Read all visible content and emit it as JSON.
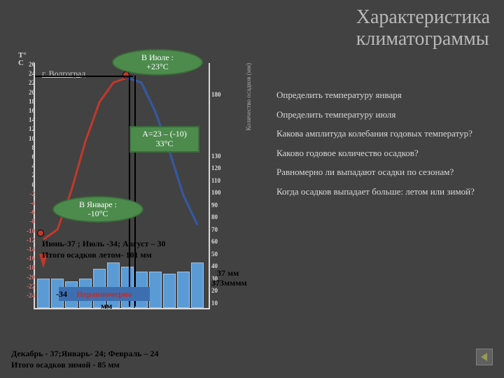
{
  "title_line1": "Характеристика",
  "title_line2": "климатограммы",
  "city_label": "г. Волгоград",
  "july_oval_l1": "В Июле :",
  "july_oval_l2": "+23°C",
  "january_oval_l1": "В Январе :",
  "january_oval_l2": "-10°C",
  "amp_l1": "А=23 – (-10)",
  "amp_l2": "33°C",
  "q1": "Определить температуру января",
  "q2": "Определить температуру июля",
  "q3": "Какова амплитуда колебания годовых температур?",
  "q4": "Каково годовое количество осадков?",
  "q5": "Равномерно ли выпадают осадки по сезонам?",
  "q6": "Когда осадков выпадает больше: летом или зимой?",
  "summer_l1": "Июнь-37 ; Июль -34; Август – 30",
  "summer_l2": "Итого осадков летом- 101 мм",
  "winter_l1": "Декабрь - 37;Январь-  24; Февраль –  24",
  "winter_l2": "Итого осадков зимой -  85 мм",
  "irregular_label": "Неравномерно",
  "irregular_left": "-34",
  "irregular_suffix": "мм",
  "mm37": "37 мм",
  "mm_blob": "373мммм",
  "mm24": "24 мм",
  "y_left_title_1": "Т°",
  "y_left_title_2": "С",
  "y_right_title": "Количество осадков (мм)",
  "y_left_ticks": [
    26,
    24,
    22,
    20,
    18,
    16,
    14,
    12,
    10,
    8,
    6,
    4,
    2,
    0,
    -2,
    -4,
    -6,
    -8,
    -10,
    -12,
    -14,
    -16,
    -18,
    -20,
    -22,
    -24
  ],
  "y_right_ticks": [
    180,
    130,
    120,
    110,
    100,
    90,
    80,
    70,
    60,
    50,
    40,
    30,
    20,
    10
  ],
  "bars_mm": [
    24,
    24,
    22,
    24,
    32,
    37,
    34,
    30,
    30,
    28,
    30,
    37
  ],
  "bar_color": "#5b9bd5",
  "temp_c": [
    -10,
    -8,
    0,
    10,
    18,
    22,
    23,
    22,
    16,
    8,
    -1,
    -7
  ],
  "curve_red": "#c0392b",
  "curve_blue": "#2e5aa8",
  "oval_fill": "#4d8b4d",
  "background": "#424242"
}
